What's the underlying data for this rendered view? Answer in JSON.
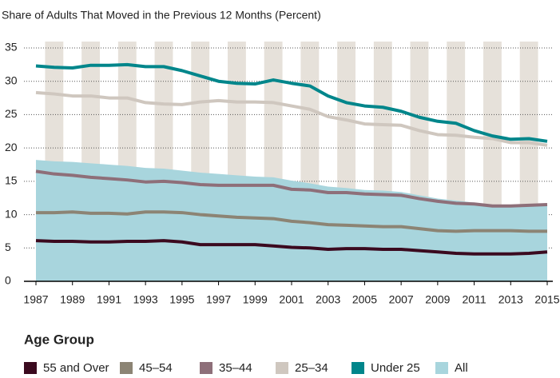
{
  "chart_data": {
    "type": "line",
    "title": "Share of Adults That Moved in the Previous 12 Months (Percent)",
    "legend_title": "Age Group",
    "x": [
      1987,
      1988,
      1989,
      1990,
      1991,
      1992,
      1993,
      1994,
      1995,
      1996,
      1997,
      1998,
      1999,
      2000,
      2001,
      2002,
      2003,
      2004,
      2005,
      2006,
      2007,
      2008,
      2009,
      2010,
      2011,
      2012,
      2013,
      2014,
      2015
    ],
    "xlim": [
      1987,
      2015
    ],
    "xticks": [
      1987,
      1989,
      1991,
      1993,
      1995,
      1997,
      1999,
      2001,
      2003,
      2005,
      2007,
      2009,
      2011,
      2013,
      2015
    ],
    "ylim": [
      0,
      35
    ],
    "yticks": [
      0,
      5,
      10,
      15,
      20,
      25,
      30,
      35
    ],
    "grid": true,
    "series": [
      {
        "name": "55 and Over",
        "color": "#3b0a1f",
        "values": [
          6.1,
          6.0,
          6.0,
          5.9,
          5.9,
          6.0,
          6.0,
          6.1,
          5.9,
          5.5,
          5.5,
          5.5,
          5.5,
          5.3,
          5.1,
          5.0,
          4.8,
          4.9,
          4.9,
          4.8,
          4.8,
          4.6,
          4.4,
          4.2,
          4.1,
          4.1,
          4.1,
          4.2,
          4.4
        ]
      },
      {
        "name": "45–54",
        "color": "#8c8474",
        "values": [
          10.3,
          10.3,
          10.4,
          10.2,
          10.2,
          10.1,
          10.4,
          10.4,
          10.3,
          10.0,
          9.8,
          9.6,
          9.5,
          9.4,
          9.0,
          8.8,
          8.5,
          8.4,
          8.3,
          8.2,
          8.2,
          7.9,
          7.6,
          7.5,
          7.6,
          7.6,
          7.6,
          7.5,
          7.5
        ]
      },
      {
        "name": "35–44",
        "color": "#8e6f79",
        "values": [
          16.5,
          16.1,
          15.9,
          15.6,
          15.4,
          15.2,
          14.9,
          15.0,
          14.8,
          14.5,
          14.4,
          14.4,
          14.4,
          14.4,
          13.8,
          13.7,
          13.3,
          13.3,
          13.1,
          13.0,
          12.9,
          12.4,
          12.0,
          11.7,
          11.6,
          11.3,
          11.3,
          11.4,
          11.5
        ]
      },
      {
        "name": "25–34",
        "color": "#cfc7bf",
        "values": [
          28.3,
          28.1,
          27.8,
          27.8,
          27.5,
          27.5,
          26.8,
          26.6,
          26.5,
          26.9,
          27.1,
          26.9,
          26.9,
          26.8,
          26.3,
          25.8,
          24.7,
          24.2,
          23.6,
          23.5,
          23.4,
          22.6,
          22.0,
          21.9,
          21.6,
          21.4,
          20.8,
          20.8,
          20.4
        ]
      },
      {
        "name": "Under 25",
        "color": "#00868b",
        "values": [
          32.3,
          32.1,
          32.0,
          32.4,
          32.4,
          32.5,
          32.2,
          32.2,
          31.6,
          30.8,
          30.0,
          29.7,
          29.6,
          30.2,
          29.7,
          29.3,
          27.8,
          26.8,
          26.3,
          26.1,
          25.5,
          24.6,
          24.0,
          23.7,
          22.6,
          21.8,
          21.3,
          21.4,
          21.0
        ]
      },
      {
        "name": "All",
        "color": "#a8d5dd",
        "style": "area",
        "values": [
          18.2,
          18.0,
          17.9,
          17.7,
          17.5,
          17.3,
          17.0,
          16.9,
          16.6,
          16.3,
          16.1,
          15.9,
          15.7,
          15.6,
          15.1,
          14.7,
          14.2,
          14.0,
          13.7,
          13.6,
          13.4,
          12.9,
          12.4,
          12.1,
          11.8,
          11.5,
          11.5,
          11.4,
          11.3
        ]
      }
    ]
  }
}
